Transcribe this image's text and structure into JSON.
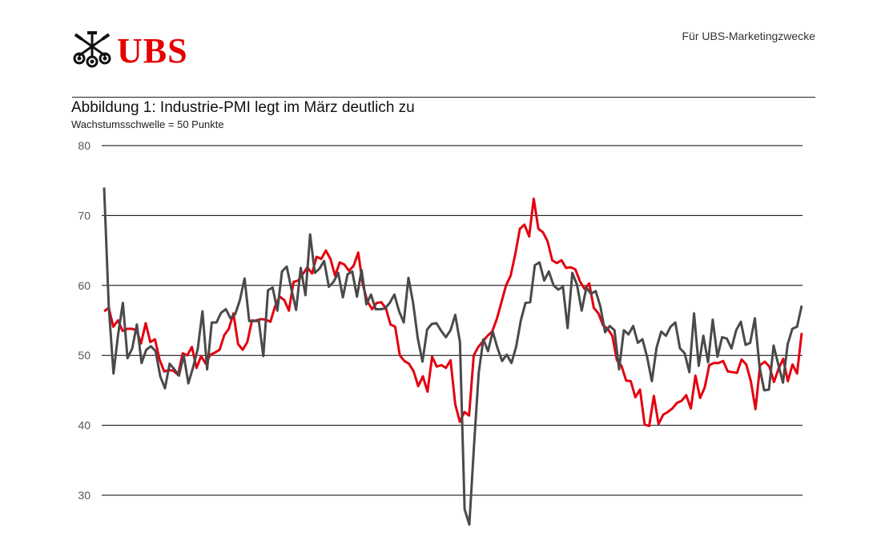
{
  "header": {
    "brand": "UBS",
    "tagline": "Für UBS-Marketingzwecke"
  },
  "colors": {
    "brand_red": "#e60000",
    "series_red": "#e3000f",
    "series_gray": "#4a4a4a",
    "grid": "#000000"
  },
  "icons": [
    "ubs-keys-logo-icon"
  ],
  "chart_data": {
    "type": "line",
    "title": "Abbildung 1: Industrie-PMI legt im März deutlich zu",
    "subtitle": "Wachstumsschwelle = 50 Punkte",
    "ylim": [
      30,
      80
    ],
    "yticks": [
      30,
      40,
      50,
      60,
      70,
      80
    ],
    "grid": true,
    "legend": "none",
    "x": {
      "start": 0,
      "end": 180
    },
    "series": [
      {
        "color": "#e3000f",
        "values": [
          56.3,
          56.8,
          54.1,
          55.0,
          53.5,
          53.8,
          53.8,
          53.6,
          51.7,
          54.6,
          51.9,
          52.3,
          49.4,
          47.7,
          47.9,
          47.8,
          47.2,
          50.3,
          50.0,
          51.2,
          48.2,
          49.9,
          48.8,
          50.1,
          50.4,
          50.8,
          52.9,
          53.8,
          56.0,
          51.6,
          50.8,
          51.9,
          55.0,
          54.9,
          55.2,
          55.1,
          54.8,
          57.0,
          58.4,
          57.9,
          56.4,
          60.5,
          60.7,
          61.6,
          62.6,
          61.7,
          64.1,
          63.8,
          65.0,
          63.8,
          61.4,
          63.3,
          63.0,
          62.1,
          62.8,
          64.7,
          60.1,
          57.7,
          56.6,
          57.5,
          57.6,
          56.7,
          54.4,
          54.1,
          50.0,
          49.2,
          48.8,
          47.7,
          45.6,
          47.0,
          44.8,
          49.8,
          48.4,
          48.6,
          48.2,
          49.3,
          43.0,
          40.5,
          41.9,
          41.4,
          50.0,
          51.2,
          52.0,
          52.8,
          53.4,
          55.2,
          57.6,
          60.0,
          61.4,
          64.5,
          68.1,
          68.7,
          67.0,
          72.4,
          68.1,
          67.6,
          66.3,
          63.6,
          63.2,
          63.6,
          62.5,
          62.6,
          62.3,
          60.6,
          59.5,
          60.3,
          56.8,
          56.0,
          54.3,
          53.8,
          52.8,
          49.3,
          48.5,
          46.4,
          46.3,
          44.0,
          45.1,
          40.1,
          39.9,
          44.2,
          40.2,
          41.5,
          41.9,
          42.4,
          43.2,
          43.5,
          44.3,
          42.4,
          47.1,
          43.9,
          45.4,
          48.6,
          48.9,
          48.9,
          49.2,
          47.7,
          47.6,
          47.5,
          49.4,
          48.7,
          46.3,
          42.3,
          48.6,
          49.1,
          48.4,
          46.2,
          48.1,
          49.5,
          46.3,
          48.7,
          47.4,
          53.2
        ]
      },
      {
        "color": "#4a4a4a",
        "values": [
          74.0,
          57.0,
          47.4,
          53.0,
          57.5,
          49.6,
          51.0,
          54.4,
          48.9,
          50.8,
          51.3,
          50.6,
          47.0,
          45.3,
          48.8,
          48.0,
          47.1,
          50.0,
          46.0,
          48.3,
          50.9,
          56.3,
          48.0,
          54.7,
          54.7,
          56.1,
          56.6,
          55.3,
          55.9,
          57.9,
          61.0,
          54.9,
          54.9,
          55.1,
          49.9,
          59.3,
          59.7,
          56.4,
          62.0,
          62.7,
          59.5,
          56.5,
          62.5,
          58.6,
          67.3,
          61.8,
          62.4,
          63.5,
          59.8,
          60.5,
          61.8,
          58.3,
          61.6,
          62.0,
          58.4,
          62.2,
          57.3,
          58.7,
          56.6,
          56.6,
          56.7,
          57.5,
          58.7,
          56.3,
          54.7,
          61.1,
          57.5,
          52.4,
          49.1,
          53.7,
          54.5,
          54.6,
          53.5,
          52.6,
          53.6,
          55.8,
          51.9,
          28.0,
          25.8,
          37.0,
          47.5,
          52.3,
          50.6,
          53.4,
          51.1,
          49.2,
          50.1,
          48.9,
          51.2,
          55.0,
          57.5,
          57.6,
          62.9,
          63.3,
          60.7,
          62.0,
          60.0,
          59.4,
          59.8,
          53.9,
          61.8,
          60.1,
          56.4,
          59.7,
          58.8,
          59.2,
          57.0,
          53.3,
          54.2,
          53.6,
          48.0,
          53.6,
          53.0,
          54.2,
          51.8,
          52.3,
          49.7,
          46.3,
          51.1,
          53.4,
          52.8,
          54.1,
          54.7,
          51.0,
          50.3,
          47.6,
          56.0,
          48.5,
          52.8,
          49.0,
          55.1,
          49.8,
          52.6,
          52.4,
          51.0,
          53.6,
          54.8,
          51.5,
          51.8,
          55.3,
          48.3,
          45.0,
          45.1,
          51.4,
          48.7,
          46.1,
          51.6,
          53.8,
          54.1,
          57.1
        ]
      }
    ]
  }
}
